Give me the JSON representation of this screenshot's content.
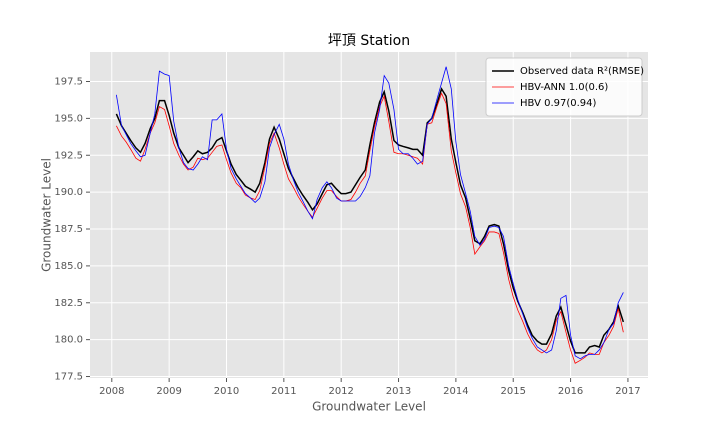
{
  "chart_data": {
    "type": "line",
    "title": "坪頂 Station",
    "xlabel": "Groundwater Level",
    "ylabel": "Groundwater Level",
    "x": [
      2008.08,
      2008.17,
      2008.25,
      2008.33,
      2008.42,
      2008.5,
      2008.58,
      2008.67,
      2008.75,
      2008.83,
      2008.92,
      2009.0,
      2009.08,
      2009.17,
      2009.25,
      2009.33,
      2009.42,
      2009.5,
      2009.58,
      2009.67,
      2009.75,
      2009.83,
      2009.92,
      2010.0,
      2010.08,
      2010.17,
      2010.25,
      2010.33,
      2010.42,
      2010.5,
      2010.58,
      2010.67,
      2010.75,
      2010.83,
      2010.92,
      2011.0,
      2011.08,
      2011.17,
      2011.25,
      2011.33,
      2011.42,
      2011.5,
      2011.58,
      2011.67,
      2011.75,
      2011.83,
      2011.92,
      2012.0,
      2012.08,
      2012.17,
      2012.25,
      2012.33,
      2012.42,
      2012.5,
      2012.58,
      2012.67,
      2012.75,
      2012.83,
      2012.92,
      2013.0,
      2013.08,
      2013.17,
      2013.25,
      2013.33,
      2013.42,
      2013.5,
      2013.58,
      2013.67,
      2013.75,
      2013.83,
      2013.92,
      2014.0,
      2014.08,
      2014.17,
      2014.25,
      2014.33,
      2014.42,
      2014.5,
      2014.58,
      2014.67,
      2014.75,
      2014.83,
      2014.92,
      2015.0,
      2015.08,
      2015.17,
      2015.25,
      2015.33,
      2015.42,
      2015.5,
      2015.58,
      2015.67,
      2015.75,
      2015.83,
      2015.92,
      2016.0,
      2016.08,
      2016.17,
      2016.25,
      2016.33,
      2016.42,
      2016.5,
      2016.58,
      2016.67,
      2016.75,
      2016.83,
      2016.92
    ],
    "series": [
      {
        "name": "Observed data R²(RMSE)",
        "color": "#000000",
        "values": [
          195.3,
          194.5,
          194.0,
          193.5,
          193.0,
          192.7,
          193.3,
          194.3,
          195.0,
          196.2,
          196.2,
          195.2,
          194.0,
          193.0,
          192.5,
          192.0,
          192.4,
          192.8,
          192.6,
          192.7,
          193.0,
          193.5,
          193.7,
          192.8,
          191.9,
          191.2,
          190.8,
          190.4,
          190.2,
          190.0,
          190.6,
          192.0,
          193.6,
          194.4,
          193.6,
          192.6,
          191.6,
          190.9,
          190.3,
          189.8,
          189.3,
          188.8,
          189.2,
          189.9,
          190.5,
          190.6,
          190.2,
          189.9,
          189.9,
          190.0,
          190.5,
          191.0,
          191.5,
          193.2,
          194.7,
          196.1,
          196.8,
          195.5,
          193.5,
          193.2,
          193.1,
          193.0,
          192.9,
          192.9,
          192.5,
          194.7,
          195.0,
          196.0,
          197.0,
          196.5,
          193.6,
          192.0,
          190.5,
          189.6,
          188.2,
          186.7,
          186.5,
          187.0,
          187.7,
          187.8,
          187.7,
          186.5,
          184.7,
          183.5,
          182.6,
          181.8,
          181.0,
          180.3,
          179.9,
          179.7,
          179.7,
          180.4,
          181.6,
          182.2,
          181.0,
          179.9,
          179.1,
          179.1,
          179.1,
          179.5,
          179.6,
          179.5,
          180.3,
          180.7,
          181.2,
          182.3,
          181.2
        ]
      },
      {
        "name": "HBV-ANN 1.0(0.6)",
        "color": "#ff0000",
        "values": [
          194.5,
          193.8,
          193.4,
          192.9,
          192.3,
          192.1,
          192.9,
          194.0,
          194.7,
          195.8,
          195.6,
          194.5,
          193.3,
          192.5,
          191.9,
          191.5,
          191.7,
          192.3,
          192.2,
          192.3,
          192.7,
          193.1,
          193.2,
          192.2,
          191.3,
          190.6,
          190.3,
          189.8,
          189.6,
          189.5,
          190.1,
          191.7,
          193.3,
          194.0,
          193.0,
          191.9,
          190.9,
          190.3,
          189.7,
          189.2,
          188.7,
          188.3,
          188.9,
          189.6,
          190.1,
          190.1,
          189.7,
          189.4,
          189.4,
          189.5,
          190.0,
          190.6,
          191.1,
          192.8,
          194.4,
          195.8,
          196.5,
          194.8,
          192.7,
          192.6,
          192.6,
          192.5,
          192.4,
          192.3,
          191.9,
          194.6,
          194.7,
          195.8,
          196.7,
          196.0,
          192.8,
          191.3,
          189.9,
          189.0,
          187.6,
          185.8,
          186.3,
          186.7,
          187.3,
          187.3,
          187.2,
          185.9,
          184.1,
          182.9,
          182.0,
          181.2,
          180.4,
          179.8,
          179.3,
          179.1,
          179.3,
          180.0,
          181.3,
          181.9,
          180.5,
          179.3,
          178.4,
          178.6,
          178.8,
          179.1,
          179.0,
          179.0,
          179.8,
          180.3,
          180.9,
          182.1,
          180.5
        ]
      },
      {
        "name": "HBV 0.97(0.94)",
        "color": "#0000ff",
        "values": [
          196.6,
          194.5,
          193.9,
          193.3,
          192.8,
          192.4,
          192.5,
          194.0,
          195.3,
          198.2,
          198.0,
          197.9,
          194.8,
          193.0,
          192.0,
          191.6,
          191.5,
          191.9,
          192.4,
          192.2,
          194.9,
          194.9,
          195.3,
          192.9,
          191.6,
          190.9,
          190.4,
          189.9,
          189.6,
          189.3,
          189.6,
          190.7,
          193.0,
          193.9,
          194.6,
          193.6,
          191.9,
          190.8,
          190.0,
          189.4,
          188.7,
          188.2,
          189.5,
          190.3,
          190.7,
          190.3,
          189.6,
          189.4,
          189.4,
          189.4,
          189.4,
          189.7,
          190.3,
          191.1,
          194.0,
          195.6,
          197.9,
          197.4,
          195.6,
          192.9,
          192.6,
          192.6,
          192.3,
          191.9,
          192.1,
          194.6,
          195.0,
          196.3,
          197.4,
          198.5,
          197.0,
          193.4,
          191.2,
          189.9,
          188.7,
          187.0,
          186.4,
          186.8,
          187.6,
          187.7,
          187.6,
          187.0,
          185.0,
          183.8,
          182.7,
          181.7,
          180.8,
          180.1,
          179.5,
          179.3,
          179.1,
          179.3,
          180.6,
          182.8,
          183.0,
          180.3,
          178.9,
          178.7,
          178.9,
          179.0,
          179.0,
          179.3,
          179.8,
          180.7,
          181.1,
          182.5,
          183.2
        ]
      }
    ],
    "xlim": [
      2007.62,
      2017.35
    ],
    "xticks": [
      2008,
      2009,
      2010,
      2011,
      2012,
      2013,
      2014,
      2015,
      2016,
      2017
    ],
    "ylim": [
      177.4,
      199.5
    ],
    "yticks": [
      {
        "value": 177.5,
        "label": "177.5"
      },
      {
        "value": 180,
        "label": "180.0"
      },
      {
        "value": 182.5,
        "label": "182.5"
      },
      {
        "value": 185,
        "label": "185.0"
      },
      {
        "value": 187.5,
        "label": "187.5"
      },
      {
        "value": 190,
        "label": "190.0"
      },
      {
        "value": 192.5,
        "label": "192.5"
      },
      {
        "value": 195,
        "label": "195.0"
      },
      {
        "value": 197.5,
        "label": "197.5"
      }
    ],
    "grid": true,
    "legend": "upper right"
  }
}
